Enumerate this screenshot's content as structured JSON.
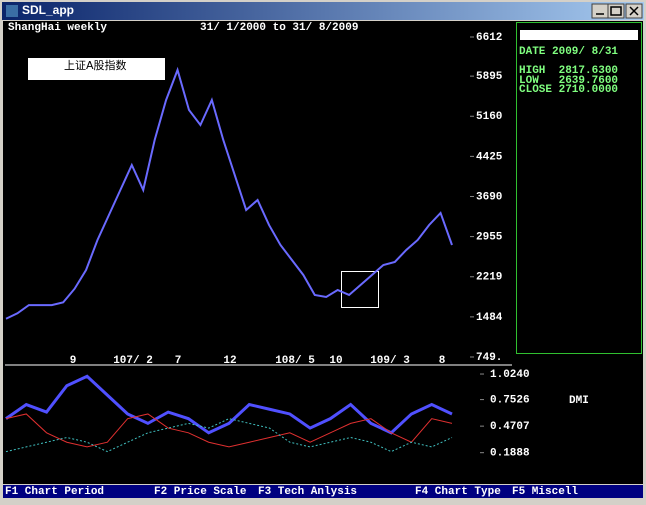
{
  "window": {
    "title": "SDL_app"
  },
  "header": {
    "market": "ShangHai weekly",
    "range": "31/ 1/2000 to 31/ 8/2009",
    "index_name": "上证A股指数"
  },
  "info": {
    "date": "DATE 2009/ 8/31",
    "high": "HIGH  2817.6300",
    "low": "LOW   2639.7600",
    "close": "CLOSE 2710.0000"
  },
  "price_chart": {
    "ylim": [
      749,
      6612
    ],
    "yticks": [
      6612,
      5895,
      5160,
      4425,
      3690,
      2955,
      2219,
      1484,
      {
        "value": 749,
        "label": "749."
      }
    ],
    "xlabels": [
      "9",
      "107/ 2",
      "7",
      "12",
      "108/ 5",
      "10",
      "109/ 3",
      "8"
    ],
    "color": "#6a6aff",
    "values": [
      1450,
      1550,
      1700,
      1700,
      1700,
      1750,
      2000,
      2343,
      2893,
      3351,
      3809,
      4267,
      3809,
      4725,
      5458,
      6008,
      5275,
      5000,
      5458,
      4725,
      4084,
      3443,
      3626,
      3168,
      2801,
      2527,
      2252,
      1886,
      1849,
      1977,
      1886,
      2069,
      2252,
      2435,
      2490,
      2710,
      2893,
      3168,
      3388,
      2801
    ]
  },
  "dmi_chart": {
    "label": "DMI",
    "ylim": [
      -0.08,
      1.088
    ],
    "yticks": [
      {
        "value": 1.024,
        "label": "1.0240"
      },
      0.7526,
      0.4707,
      0.1888
    ],
    "series": [
      {
        "color": "#5050ff",
        "values": [
          0.55,
          0.7,
          0.62,
          0.9,
          1.0,
          0.8,
          0.6,
          0.5,
          0.62,
          0.55,
          0.4,
          0.5,
          0.7,
          0.65,
          0.6,
          0.45,
          0.55,
          0.7,
          0.5,
          0.4,
          0.6,
          0.7,
          0.6
        ]
      },
      {
        "color": "#e03030",
        "values": [
          0.55,
          0.6,
          0.4,
          0.3,
          0.25,
          0.3,
          0.55,
          0.6,
          0.45,
          0.4,
          0.3,
          0.25,
          0.3,
          0.35,
          0.4,
          0.3,
          0.4,
          0.5,
          0.55,
          0.4,
          0.3,
          0.55,
          0.5
        ]
      },
      {
        "color": "#40c0c0",
        "values": [
          0.2,
          0.25,
          0.3,
          0.35,
          0.3,
          0.2,
          0.3,
          0.4,
          0.45,
          0.5,
          0.45,
          0.55,
          0.5,
          0.45,
          0.3,
          0.25,
          0.3,
          0.35,
          0.3,
          0.2,
          0.3,
          0.25,
          0.35
        ]
      }
    ]
  },
  "menu": [
    "F1 Chart Period",
    "F2 Price Scale",
    "F3 Tech Anlysis",
    "F4 Chart Type",
    "F5 Miscell"
  ]
}
